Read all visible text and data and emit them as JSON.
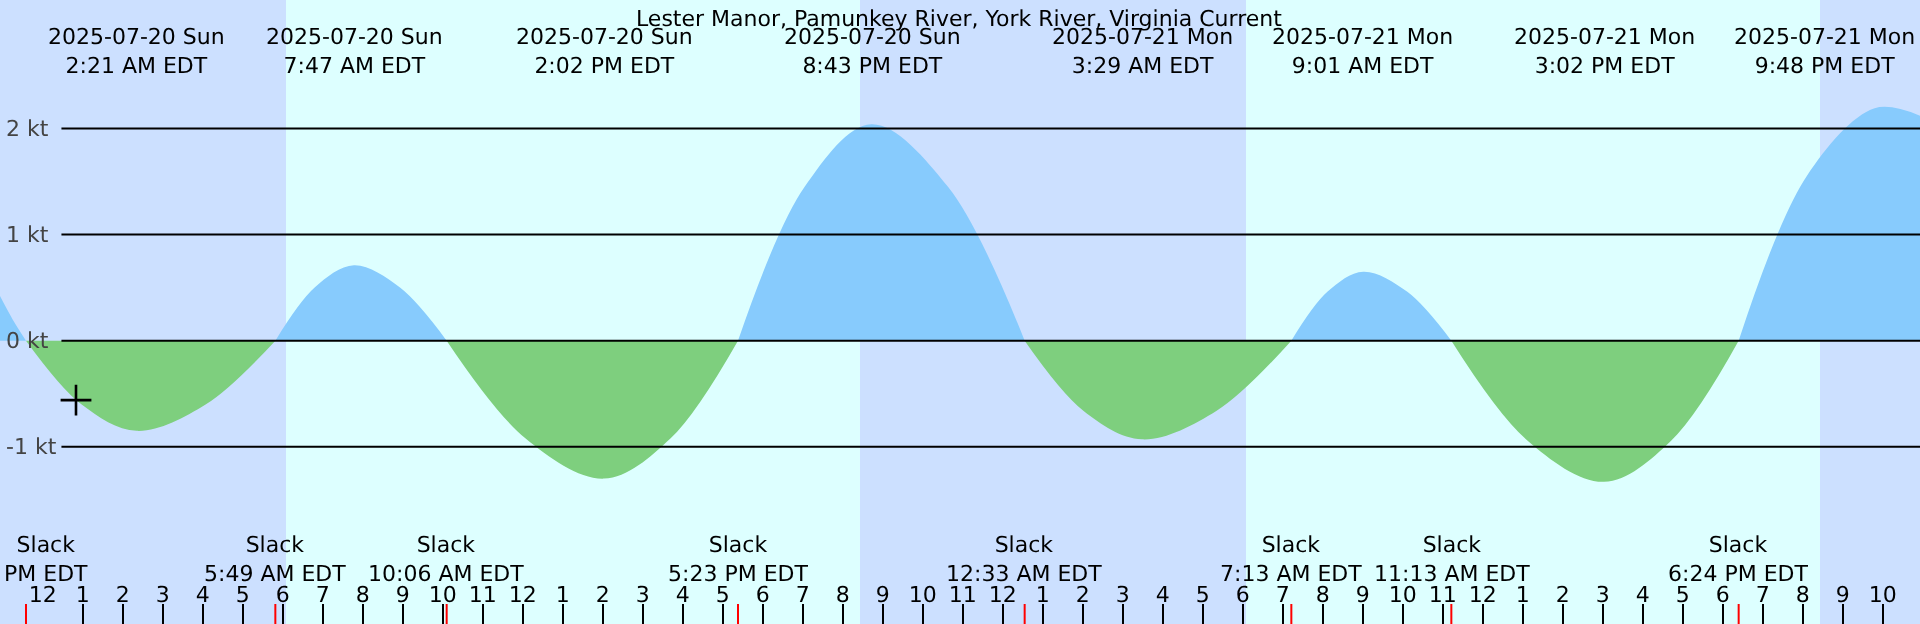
{
  "chart_data": {
    "type": "area",
    "title": "Lester Manor, Pamunkey River, York River, Virginia Current",
    "xlim": [
      "2025-07-19T22:56",
      "2025-07-21T22:56"
    ],
    "ylim": [
      -2.67,
      3.21
    ],
    "yticks": [
      {
        "value": 2,
        "label": "2 kt"
      },
      {
        "value": 1,
        "label": "1 kt"
      },
      {
        "value": 0,
        "label": "0 kt"
      },
      {
        "value": -1,
        "label": "-1 kt"
      }
    ],
    "xticks": [
      {
        "value": "2025-07-20T00:00",
        "label": "12"
      },
      {
        "value": "2025-07-20T01:00",
        "label": "1"
      },
      {
        "value": "2025-07-20T02:00",
        "label": "2"
      },
      {
        "value": "2025-07-20T03:00",
        "label": "3"
      },
      {
        "value": "2025-07-20T04:00",
        "label": "4"
      },
      {
        "value": "2025-07-20T05:00",
        "label": "5"
      },
      {
        "value": "2025-07-20T06:00",
        "label": "6"
      },
      {
        "value": "2025-07-20T07:00",
        "label": "7"
      },
      {
        "value": "2025-07-20T08:00",
        "label": "8"
      },
      {
        "value": "2025-07-20T09:00",
        "label": "9"
      },
      {
        "value": "2025-07-20T10:00",
        "label": "10"
      },
      {
        "value": "2025-07-20T11:00",
        "label": "11"
      },
      {
        "value": "2025-07-20T12:00",
        "label": "12"
      },
      {
        "value": "2025-07-20T13:00",
        "label": "1"
      },
      {
        "value": "2025-07-20T14:00",
        "label": "2"
      },
      {
        "value": "2025-07-20T15:00",
        "label": "3"
      },
      {
        "value": "2025-07-20T16:00",
        "label": "4"
      },
      {
        "value": "2025-07-20T17:00",
        "label": "5"
      },
      {
        "value": "2025-07-20T18:00",
        "label": "6"
      },
      {
        "value": "2025-07-20T19:00",
        "label": "7"
      },
      {
        "value": "2025-07-20T20:00",
        "label": "8"
      },
      {
        "value": "2025-07-20T21:00",
        "label": "9"
      },
      {
        "value": "2025-07-20T22:00",
        "label": "10"
      },
      {
        "value": "2025-07-20T23:00",
        "label": "11"
      },
      {
        "value": "2025-07-21T00:00",
        "label": "12"
      },
      {
        "value": "2025-07-21T01:00",
        "label": "1"
      },
      {
        "value": "2025-07-21T02:00",
        "label": "2"
      },
      {
        "value": "2025-07-21T03:00",
        "label": "3"
      },
      {
        "value": "2025-07-21T04:00",
        "label": "4"
      },
      {
        "value": "2025-07-21T05:00",
        "label": "5"
      },
      {
        "value": "2025-07-21T06:00",
        "label": "6"
      },
      {
        "value": "2025-07-21T07:00",
        "label": "7"
      },
      {
        "value": "2025-07-21T08:00",
        "label": "8"
      },
      {
        "value": "2025-07-21T09:00",
        "label": "9"
      },
      {
        "value": "2025-07-21T10:00",
        "label": "10"
      },
      {
        "value": "2025-07-21T11:00",
        "label": "11"
      },
      {
        "value": "2025-07-21T12:00",
        "label": "12"
      },
      {
        "value": "2025-07-21T13:00",
        "label": "1"
      },
      {
        "value": "2025-07-21T14:00",
        "label": "2"
      },
      {
        "value": "2025-07-21T15:00",
        "label": "3"
      },
      {
        "value": "2025-07-21T16:00",
        "label": "4"
      },
      {
        "value": "2025-07-21T17:00",
        "label": "5"
      },
      {
        "value": "2025-07-21T18:00",
        "label": "6"
      },
      {
        "value": "2025-07-21T19:00",
        "label": "7"
      },
      {
        "value": "2025-07-21T20:00",
        "label": "8"
      },
      {
        "value": "2025-07-21T21:00",
        "label": "9"
      },
      {
        "value": "2025-07-21T22:00",
        "label": "10"
      }
    ],
    "grid": "y",
    "bands": [
      {
        "axis": "x",
        "from": "2025-07-19T22:56",
        "to": "2025-07-20T06:05",
        "color": "#cce0ff"
      },
      {
        "axis": "x",
        "from": "2025-07-20T06:05",
        "to": "2025-07-20T20:26",
        "color": "#ddffff"
      },
      {
        "axis": "x",
        "from": "2025-07-20T20:26",
        "to": "2025-07-21T06:05",
        "color": "#cce0ff"
      },
      {
        "axis": "x",
        "from": "2025-07-21T06:05",
        "to": "2025-07-21T20:26",
        "color": "#ddffff"
      },
      {
        "axis": "x",
        "from": "2025-07-21T20:26",
        "to": "2025-07-21T22:56",
        "color": "#cce0ff"
      }
    ],
    "series": [
      {
        "color": "#87cbfd",
        "x": [
          "2025-07-19T22:56",
          "2025-07-19T23:15",
          "2025-07-19T23:35",
          "2025-07-20T03:00",
          "2025-07-20T05:49",
          "2025-07-20T06:48",
          "2025-07-20T07:47",
          "2025-07-20T08:56",
          "2025-07-20T10:06",
          "2025-07-20T14:00",
          "2025-07-20T17:23",
          "2025-07-20T19:03",
          "2025-07-20T20:43",
          "2025-07-20T22:38",
          "2025-07-21T00:33",
          "2025-07-21T04:00",
          "2025-07-21T07:13",
          "2025-07-21T08:07",
          "2025-07-21T09:01",
          "2025-07-21T10:07",
          "2025-07-21T11:13",
          "2025-07-21T15:00",
          "2025-07-21T18:24",
          "2025-07-21T20:06",
          "2025-07-21T21:48",
          "2025-07-21T22:56"
        ],
        "values": [
          0.42,
          0.2,
          0,
          null,
          0,
          0.5,
          0.71,
          0.5,
          0,
          null,
          0,
          1.45,
          2.04,
          1.45,
          0,
          null,
          0,
          0.46,
          0.65,
          0.46,
          0,
          null,
          0,
          1.55,
          2.19,
          2.12
        ]
      },
      {
        "color": "#7ecf7e",
        "x": [
          "2025-07-19T23:35",
          "2025-07-20T00:58",
          "2025-07-20T02:21",
          "2025-07-20T04:05",
          "2025-07-20T05:49",
          "2025-07-20T08:00",
          "2025-07-20T10:06",
          "2025-07-20T12:04",
          "2025-07-20T14:02",
          "2025-07-20T15:42",
          "2025-07-20T17:23",
          "2025-07-20T21:00",
          "2025-07-21T00:33",
          "2025-07-21T02:01",
          "2025-07-21T03:29",
          "2025-07-21T05:21",
          "2025-07-21T07:13",
          "2025-07-21T09:00",
          "2025-07-21T11:13",
          "2025-07-21T13:07",
          "2025-07-21T15:02",
          "2025-07-21T16:43",
          "2025-07-21T18:24"
        ],
        "values": [
          0,
          -0.6,
          -0.85,
          -0.6,
          0,
          null,
          0,
          -0.92,
          -1.3,
          -0.92,
          0,
          null,
          0,
          -0.66,
          -0.93,
          -0.66,
          0,
          null,
          0,
          -0.94,
          -1.33,
          -0.94,
          0
        ]
      },
      {
        "type": "scatter",
        "marker": "cross",
        "color": "#000000",
        "x": [
          "2025-07-20T00:50"
        ],
        "values": [
          -0.56
        ]
      }
    ],
    "annotations": [
      "2025-07-20 Sun\n2:21 AM EDT",
      "2025-07-20 Sun\n7:47 AM EDT",
      "2025-07-20 Sun\n2:02 PM EDT",
      "2025-07-20 Sun\n8:43 PM EDT",
      "2025-07-21 Mon\n3:29 AM EDT",
      "2025-07-21 Mon\n9:01 AM EDT",
      "2025-07-21 Mon\n3:02 PM EDT",
      "2025-07-21 Mon\n9:48 PM EDT",
      "Slack\nPM EDT",
      "Slack\n5:49 AM EDT",
      "Slack\n10:06 AM EDT",
      "Slack\n5:23 PM EDT",
      "Slack\n12:33 AM EDT",
      "Slack\n7:13 AM EDT",
      "Slack\n11:13 AM EDT",
      "Slack\n6:24 PM EDT"
    ]
  }
}
